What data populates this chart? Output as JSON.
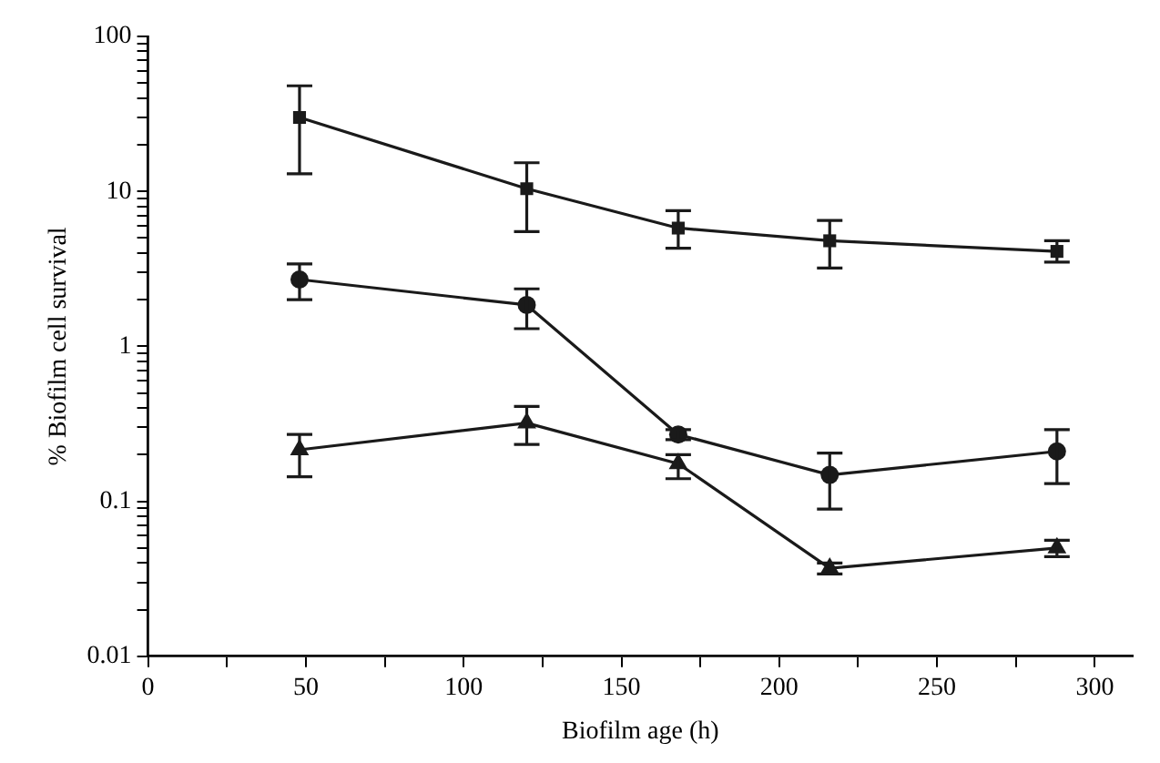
{
  "chart_data": {
    "type": "line",
    "xlabel": "Biofilm age (h)",
    "ylabel": "% Biofilm cell survival",
    "log": "y",
    "grid": false,
    "legend": false,
    "xlim": [
      0,
      312
    ],
    "xticks": [
      0,
      {
        "value": 25,
        "label": null
      },
      50,
      {
        "value": 75,
        "label": null
      },
      100,
      {
        "value": 125,
        "label": null
      },
      150,
      {
        "value": 175,
        "label": null
      },
      200,
      {
        "value": 225,
        "label": null
      },
      250,
      {
        "value": 275,
        "label": null
      },
      300
    ],
    "ylim": [
      0.01,
      100
    ],
    "yticks": [
      {
        "value": 0.01,
        "label": "0.01"
      },
      {
        "value": 0.02,
        "label": null
      },
      {
        "value": 0.03,
        "label": null
      },
      {
        "value": 0.04,
        "label": null
      },
      {
        "value": 0.05,
        "label": null
      },
      {
        "value": 0.06,
        "label": null
      },
      {
        "value": 0.07,
        "label": null
      },
      {
        "value": 0.08,
        "label": null
      },
      {
        "value": 0.09,
        "label": null
      },
      {
        "value": 0.1,
        "label": "0.1"
      },
      {
        "value": 0.2,
        "label": null
      },
      {
        "value": 0.3,
        "label": null
      },
      {
        "value": 0.4,
        "label": null
      },
      {
        "value": 0.5,
        "label": null
      },
      {
        "value": 0.6,
        "label": null
      },
      {
        "value": 0.7,
        "label": null
      },
      {
        "value": 0.8,
        "label": null
      },
      {
        "value": 0.9,
        "label": null
      },
      {
        "value": 1,
        "label": "1"
      },
      {
        "value": 2,
        "label": null
      },
      {
        "value": 3,
        "label": null
      },
      {
        "value": 4,
        "label": null
      },
      {
        "value": 5,
        "label": null
      },
      {
        "value": 6,
        "label": null
      },
      {
        "value": 7,
        "label": null
      },
      {
        "value": 8,
        "label": null
      },
      {
        "value": 9,
        "label": null
      },
      {
        "value": 10,
        "label": "10"
      },
      {
        "value": 20,
        "label": null
      },
      {
        "value": 30,
        "label": null
      },
      {
        "value": 40,
        "label": null
      },
      {
        "value": 50,
        "label": null
      },
      {
        "value": 60,
        "label": null
      },
      {
        "value": 70,
        "label": null
      },
      {
        "value": 80,
        "label": null
      },
      {
        "value": 90,
        "label": null
      },
      {
        "value": 100,
        "label": "100"
      }
    ],
    "series": [
      {
        "color": "#1a1a1a",
        "marker": "square",
        "x": [
          48,
          120,
          168,
          216,
          288
        ],
        "values": [
          30,
          10.4,
          5.8,
          4.8,
          4.1
        ],
        "errors": [
          [
            13,
            48
          ],
          [
            5.5,
            15.3
          ],
          [
            4.3,
            7.5
          ],
          [
            3.2,
            6.5
          ],
          [
            3.5,
            4.8
          ]
        ]
      },
      {
        "color": "#1a1a1a",
        "marker": "circle",
        "x": [
          48,
          120,
          168,
          216,
          288
        ],
        "values": [
          2.7,
          1.85,
          0.27,
          0.148,
          0.21
        ],
        "errors": [
          [
            2.0,
            3.4
          ],
          [
            1.3,
            2.35
          ],
          [
            0.25,
            0.29
          ],
          [
            0.089,
            0.205
          ],
          [
            0.13,
            0.29
          ]
        ]
      },
      {
        "color": "#1a1a1a",
        "marker": "triangle",
        "x": [
          48,
          120,
          168,
          216,
          288
        ],
        "values": [
          0.215,
          0.32,
          0.175,
          0.037,
          0.05
        ],
        "errors": [
          [
            0.144,
            0.27
          ],
          [
            0.233,
            0.41
          ],
          [
            0.14,
            0.2
          ],
          [
            0.034,
            0.04
          ],
          [
            0.044,
            0.056
          ]
        ]
      }
    ]
  }
}
